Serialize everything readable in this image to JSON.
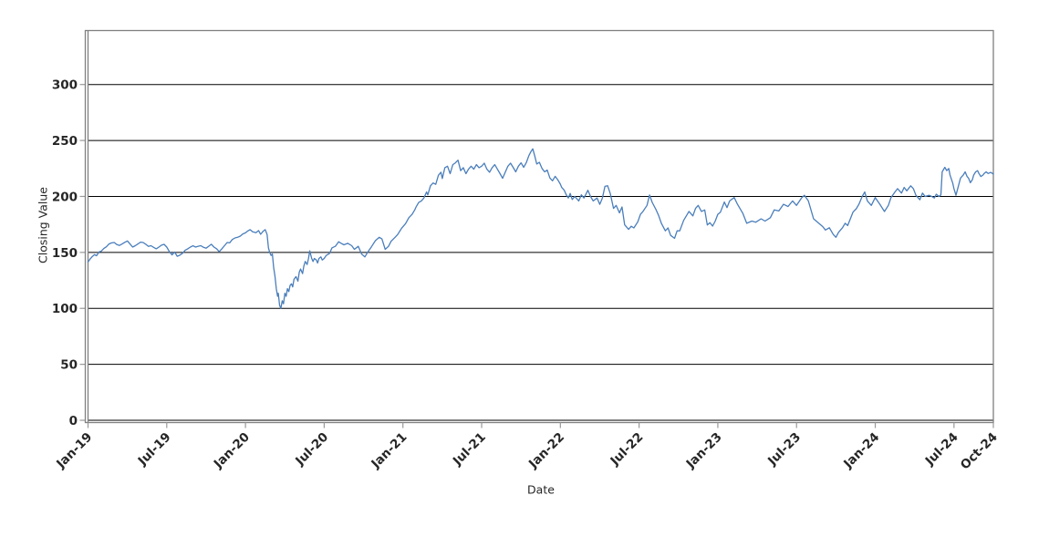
{
  "chart_data": {
    "type": "line",
    "title": "",
    "xlabel": "Date",
    "ylabel": "Closing Value",
    "series_name": "Closing Value",
    "line_color": "#4a7ebb",
    "grid_color": "#000000",
    "spine_color": "#808080",
    "tick_color": "#999999",
    "tick_label_color": "#262626",
    "background_color": "#ffffff",
    "grid": "horizontal-only",
    "legend_position": "none",
    "ylim": [
      0,
      347
    ],
    "xlim_months": [
      0,
      69
    ],
    "y_ticks": [
      0,
      50,
      100,
      150,
      200,
      250,
      300
    ],
    "x_ticks": [
      {
        "label": "Jan-19",
        "m": 0
      },
      {
        "label": "Jul-19",
        "m": 6
      },
      {
        "label": "Jan-20",
        "m": 12
      },
      {
        "label": "Jul-20",
        "m": 18
      },
      {
        "label": "Jan-21",
        "m": 24
      },
      {
        "label": "Jul-21",
        "m": 30
      },
      {
        "label": "Jan-22",
        "m": 36
      },
      {
        "label": "Jul-22",
        "m": 42
      },
      {
        "label": "Jan-23",
        "m": 48
      },
      {
        "label": "Jul-23",
        "m": 54
      },
      {
        "label": "Jan-24",
        "m": 60
      },
      {
        "label": "Jul-24",
        "m": 66
      },
      {
        "label": "Oct-24",
        "m": 69
      }
    ],
    "x_unit": "months since Jan-2019",
    "points": [
      [
        0,
        141.5
      ],
      [
        0.15,
        144
      ],
      [
        0.3,
        146
      ],
      [
        0.5,
        148
      ],
      [
        0.65,
        147
      ],
      [
        0.85,
        150.5
      ],
      [
        1.0,
        151
      ],
      [
        1.2,
        153.5
      ],
      [
        1.4,
        155
      ],
      [
        1.6,
        157.5
      ],
      [
        1.8,
        158.5
      ],
      [
        2.0,
        158.8
      ],
      [
        2.2,
        157
      ],
      [
        2.4,
        156.2
      ],
      [
        2.6,
        157.5
      ],
      [
        2.8,
        159
      ],
      [
        3.0,
        160.2
      ],
      [
        3.2,
        157.5
      ],
      [
        3.4,
        154.8
      ],
      [
        3.6,
        156
      ],
      [
        3.8,
        157.5
      ],
      [
        4.0,
        159.2
      ],
      [
        4.2,
        158.8
      ],
      [
        4.4,
        157.3
      ],
      [
        4.6,
        155.4
      ],
      [
        4.8,
        156
      ],
      [
        5.0,
        154.5
      ],
      [
        5.2,
        153.2
      ],
      [
        5.4,
        154.8
      ],
      [
        5.6,
        156.5
      ],
      [
        5.8,
        157.2
      ],
      [
        6.0,
        154.8
      ],
      [
        6.2,
        150.6
      ],
      [
        6.4,
        147.8
      ],
      [
        6.6,
        150.4
      ],
      [
        6.8,
        146.5
      ],
      [
        7.0,
        147.5
      ],
      [
        7.2,
        149.2
      ],
      [
        7.4,
        151.8
      ],
      [
        7.6,
        153.2
      ],
      [
        7.8,
        154.8
      ],
      [
        8.0,
        155.9
      ],
      [
        8.2,
        154.8
      ],
      [
        8.4,
        155.5
      ],
      [
        8.6,
        156
      ],
      [
        8.8,
        154.5
      ],
      [
        9.0,
        153.8
      ],
      [
        9.2,
        155.5
      ],
      [
        9.4,
        157.3
      ],
      [
        9.6,
        154.8
      ],
      [
        9.8,
        153.2
      ],
      [
        10.0,
        150.6
      ],
      [
        10.2,
        153.2
      ],
      [
        10.4,
        156
      ],
      [
        10.6,
        158.8
      ],
      [
        10.8,
        158.5
      ],
      [
        11.0,
        161.5
      ],
      [
        11.2,
        162.9
      ],
      [
        11.4,
        163.5
      ],
      [
        11.6,
        164.5
      ],
      [
        11.8,
        166.5
      ],
      [
        12.0,
        167.5
      ],
      [
        12.15,
        168.9
      ],
      [
        12.35,
        170.3
      ],
      [
        12.55,
        168.4
      ],
      [
        12.8,
        167.6
      ],
      [
        13.0,
        169.5
      ],
      [
        13.15,
        166.2
      ],
      [
        13.35,
        168.9
      ],
      [
        13.5,
        170.3
      ],
      [
        13.55,
        169
      ],
      [
        13.65,
        166
      ],
      [
        13.75,
        154
      ],
      [
        13.85,
        150
      ],
      [
        13.95,
        147.3
      ],
      [
        14.05,
        148.6
      ],
      [
        14.15,
        136.5
      ],
      [
        14.25,
        128.4
      ],
      [
        14.35,
        117.6
      ],
      [
        14.45,
        110.8
      ],
      [
        14.5,
        113.5
      ],
      [
        14.6,
        102.7
      ],
      [
        14.7,
        100
      ],
      [
        14.8,
        106.8
      ],
      [
        14.9,
        104.1
      ],
      [
        15.0,
        113.5
      ],
      [
        15.1,
        110.8
      ],
      [
        15.2,
        117.6
      ],
      [
        15.3,
        114.9
      ],
      [
        15.4,
        120.5
      ],
      [
        15.5,
        121.9
      ],
      [
        15.6,
        119.2
      ],
      [
        15.7,
        125.9
      ],
      [
        15.85,
        128.4
      ],
      [
        16.0,
        124.3
      ],
      [
        16.1,
        132.4
      ],
      [
        16.2,
        135.1
      ],
      [
        16.35,
        131.1
      ],
      [
        16.45,
        137.8
      ],
      [
        16.55,
        141.9
      ],
      [
        16.7,
        139.2
      ],
      [
        16.8,
        144.6
      ],
      [
        16.9,
        151.4
      ],
      [
        17.05,
        144.6
      ],
      [
        17.15,
        141.9
      ],
      [
        17.25,
        144.6
      ],
      [
        17.4,
        143.2
      ],
      [
        17.5,
        140.5
      ],
      [
        17.6,
        144.6
      ],
      [
        17.75,
        146
      ],
      [
        17.85,
        143.2
      ],
      [
        18.0,
        144.6
      ],
      [
        18.15,
        147.3
      ],
      [
        18.4,
        149
      ],
      [
        18.6,
        154.1
      ],
      [
        18.85,
        155.4
      ],
      [
        19.1,
        159.5
      ],
      [
        19.3,
        158.1
      ],
      [
        19.5,
        156.8
      ],
      [
        19.8,
        158.1
      ],
      [
        20.1,
        156
      ],
      [
        20.3,
        152.7
      ],
      [
        20.6,
        155.4
      ],
      [
        20.85,
        148.6
      ],
      [
        21.1,
        146
      ],
      [
        21.3,
        150
      ],
      [
        21.6,
        155
      ],
      [
        21.9,
        160.5
      ],
      [
        22.2,
        163.5
      ],
      [
        22.4,
        162
      ],
      [
        22.65,
        152.7
      ],
      [
        22.9,
        155.4
      ],
      [
        23.1,
        160
      ],
      [
        23.4,
        163.5
      ],
      [
        23.6,
        166
      ],
      [
        23.9,
        171.6
      ],
      [
        24.2,
        175.7
      ],
      [
        24.45,
        181
      ],
      [
        24.7,
        184
      ],
      [
        24.9,
        188
      ],
      [
        25.0,
        190.5
      ],
      [
        25.2,
        194.6
      ],
      [
        25.4,
        196
      ],
      [
        25.6,
        198.6
      ],
      [
        25.8,
        204
      ],
      [
        25.9,
        201.4
      ],
      [
        26.1,
        209.5
      ],
      [
        26.3,
        212
      ],
      [
        26.5,
        210.8
      ],
      [
        26.7,
        218.9
      ],
      [
        26.9,
        221.6
      ],
      [
        27.0,
        216
      ],
      [
        27.2,
        225.7
      ],
      [
        27.4,
        227
      ],
      [
        27.6,
        220.3
      ],
      [
        27.8,
        228.4
      ],
      [
        28.0,
        230
      ],
      [
        28.2,
        232.4
      ],
      [
        28.4,
        223
      ],
      [
        28.6,
        225.7
      ],
      [
        28.8,
        220.3
      ],
      [
        29.0,
        224.3
      ],
      [
        29.2,
        227
      ],
      [
        29.4,
        224.3
      ],
      [
        29.6,
        228.4
      ],
      [
        29.8,
        225.7
      ],
      [
        30.0,
        227
      ],
      [
        30.2,
        229.7
      ],
      [
        30.4,
        224.3
      ],
      [
        30.6,
        221.6
      ],
      [
        30.8,
        225.7
      ],
      [
        31.0,
        228.4
      ],
      [
        31.2,
        224.3
      ],
      [
        31.4,
        220.3
      ],
      [
        31.6,
        216.2
      ],
      [
        31.8,
        221.6
      ],
      [
        32.0,
        227
      ],
      [
        32.2,
        229.7
      ],
      [
        32.4,
        226
      ],
      [
        32.6,
        222
      ],
      [
        32.8,
        227
      ],
      [
        33.0,
        230
      ],
      [
        33.2,
        226
      ],
      [
        33.4,
        230
      ],
      [
        33.6,
        236.5
      ],
      [
        33.75,
        240
      ],
      [
        33.9,
        242.5
      ],
      [
        34.05,
        236
      ],
      [
        34.2,
        229
      ],
      [
        34.4,
        230.5
      ],
      [
        34.6,
        225
      ],
      [
        34.8,
        222
      ],
      [
        35.0,
        223.5
      ],
      [
        35.2,
        216.5
      ],
      [
        35.4,
        214
      ],
      [
        35.6,
        218
      ],
      [
        35.8,
        215
      ],
      [
        36.0,
        211
      ],
      [
        36.1,
        208
      ],
      [
        36.3,
        205.5
      ],
      [
        36.45,
        201.4
      ],
      [
        36.6,
        198.6
      ],
      [
        36.75,
        202.7
      ],
      [
        36.9,
        197.3
      ],
      [
        37.1,
        200
      ],
      [
        37.4,
        196
      ],
      [
        37.6,
        201.4
      ],
      [
        37.8,
        198.6
      ],
      [
        38.1,
        205.5
      ],
      [
        38.3,
        200
      ],
      [
        38.5,
        196
      ],
      [
        38.8,
        198.6
      ],
      [
        39.0,
        193
      ],
      [
        39.2,
        198.6
      ],
      [
        39.4,
        209
      ],
      [
        39.6,
        209.6
      ],
      [
        39.8,
        202.7
      ],
      [
        40.05,
        189.3
      ],
      [
        40.25,
        192
      ],
      [
        40.5,
        185.3
      ],
      [
        40.7,
        190.6
      ],
      [
        40.9,
        174.6
      ],
      [
        41.2,
        170.6
      ],
      [
        41.4,
        173.3
      ],
      [
        41.6,
        171.9
      ],
      [
        41.9,
        177.3
      ],
      [
        42.1,
        184
      ],
      [
        42.3,
        186.6
      ],
      [
        42.6,
        192
      ],
      [
        42.8,
        201.3
      ],
      [
        43.0,
        194.7
      ],
      [
        43.3,
        188
      ],
      [
        43.5,
        182.6
      ],
      [
        43.7,
        175.9
      ],
      [
        44.0,
        169.3
      ],
      [
        44.2,
        171.9
      ],
      [
        44.4,
        165.2
      ],
      [
        44.7,
        162.6
      ],
      [
        44.9,
        169.3
      ],
      [
        45.1,
        169.3
      ],
      [
        45.4,
        178.6
      ],
      [
        45.6,
        182.6
      ],
      [
        45.8,
        186.6
      ],
      [
        46.1,
        182.6
      ],
      [
        46.3,
        189.3
      ],
      [
        46.5,
        192
      ],
      [
        46.75,
        186.6
      ],
      [
        47.0,
        187.9
      ],
      [
        47.2,
        174.5
      ],
      [
        47.4,
        176.5
      ],
      [
        47.6,
        173.5
      ],
      [
        47.8,
        178
      ],
      [
        48.0,
        184
      ],
      [
        48.2,
        186
      ],
      [
        48.5,
        195
      ],
      [
        48.7,
        190
      ],
      [
        48.9,
        196
      ],
      [
        49.25,
        199
      ],
      [
        49.5,
        193
      ],
      [
        49.9,
        185
      ],
      [
        50.2,
        176
      ],
      [
        50.6,
        178
      ],
      [
        50.9,
        177
      ],
      [
        51.3,
        180
      ],
      [
        51.6,
        178
      ],
      [
        52.0,
        181
      ],
      [
        52.3,
        188
      ],
      [
        52.65,
        187
      ],
      [
        53.0,
        193
      ],
      [
        53.35,
        191
      ],
      [
        53.7,
        196
      ],
      [
        54.0,
        192
      ],
      [
        54.4,
        199
      ],
      [
        54.6,
        201
      ],
      [
        54.9,
        196
      ],
      [
        55.3,
        180
      ],
      [
        55.6,
        177
      ],
      [
        56.0,
        173
      ],
      [
        56.2,
        170
      ],
      [
        56.5,
        172
      ],
      [
        56.8,
        166
      ],
      [
        57.0,
        163.5
      ],
      [
        57.2,
        168
      ],
      [
        57.5,
        172
      ],
      [
        57.7,
        176
      ],
      [
        57.9,
        174
      ],
      [
        58.3,
        186
      ],
      [
        58.55,
        189
      ],
      [
        58.75,
        193
      ],
      [
        59.0,
        200
      ],
      [
        59.2,
        204
      ],
      [
        59.4,
        196
      ],
      [
        59.7,
        192
      ],
      [
        60.0,
        199
      ],
      [
        60.35,
        193
      ],
      [
        60.7,
        186.5
      ],
      [
        61.0,
        192
      ],
      [
        61.2,
        199
      ],
      [
        61.5,
        204
      ],
      [
        61.7,
        207
      ],
      [
        62.0,
        203
      ],
      [
        62.2,
        208
      ],
      [
        62.4,
        205
      ],
      [
        62.7,
        209.5
      ],
      [
        62.9,
        207
      ],
      [
        63.1,
        201
      ],
      [
        63.4,
        197
      ],
      [
        63.6,
        203
      ],
      [
        63.8,
        200
      ],
      [
        64.1,
        201
      ],
      [
        64.3,
        200
      ],
      [
        64.5,
        198.6
      ],
      [
        64.65,
        202
      ],
      [
        64.85,
        200
      ],
      [
        65.0,
        201.4
      ],
      [
        65.1,
        222
      ],
      [
        65.3,
        226
      ],
      [
        65.45,
        223
      ],
      [
        65.6,
        225
      ],
      [
        65.7,
        219
      ],
      [
        65.9,
        212
      ],
      [
        66.0,
        207
      ],
      [
        66.15,
        201
      ],
      [
        66.35,
        210
      ],
      [
        66.5,
        216.4
      ],
      [
        66.7,
        219
      ],
      [
        66.85,
        222
      ],
      [
        67.0,
        217.8
      ],
      [
        67.1,
        216.4
      ],
      [
        67.25,
        212.3
      ],
      [
        67.4,
        215
      ],
      [
        67.5,
        219
      ],
      [
        67.65,
        222
      ],
      [
        67.8,
        223
      ],
      [
        67.9,
        220.5
      ],
      [
        68.05,
        217.8
      ],
      [
        68.2,
        219
      ],
      [
        68.3,
        220.5
      ],
      [
        68.45,
        222
      ],
      [
        68.6,
        220.5
      ],
      [
        68.8,
        221.5
      ],
      [
        69.0,
        220
      ]
    ]
  }
}
